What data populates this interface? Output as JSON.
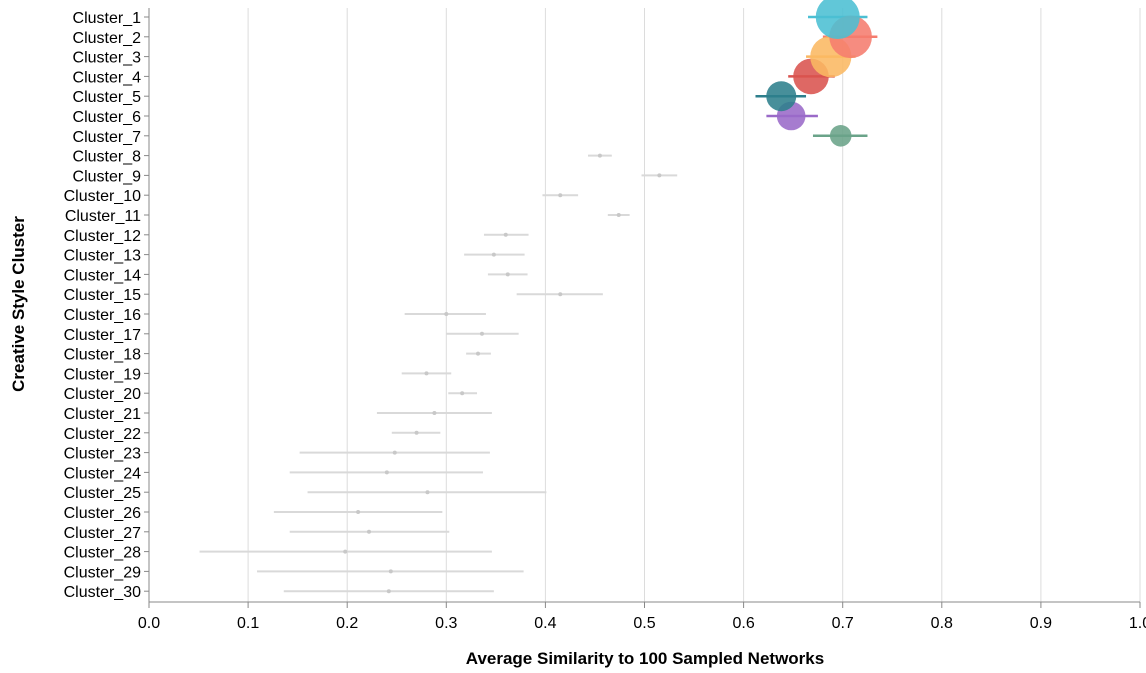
{
  "chart_data": {
    "type": "scatter",
    "title": "",
    "xlabel": "Average Similarity to 100 Sampled Networks",
    "ylabel": "Creative Style Cluster",
    "xlim": [
      0.0,
      1.0
    ],
    "xticks": [
      "0.0",
      "0.1",
      "0.2",
      "0.3",
      "0.4",
      "0.5",
      "0.6",
      "0.7",
      "0.8",
      "0.9",
      "1.0"
    ],
    "grid": "vertical",
    "legend": "none",
    "categories": [
      "Cluster_1",
      "Cluster_2",
      "Cluster_3",
      "Cluster_4",
      "Cluster_5",
      "Cluster_6",
      "Cluster_7",
      "Cluster_8",
      "Cluster_9",
      "Cluster_10",
      "Cluster_11",
      "Cluster_12",
      "Cluster_13",
      "Cluster_14",
      "Cluster_15",
      "Cluster_16",
      "Cluster_17",
      "Cluster_18",
      "Cluster_19",
      "Cluster_20",
      "Cluster_21",
      "Cluster_22",
      "Cluster_23",
      "Cluster_24",
      "Cluster_25",
      "Cluster_26",
      "Cluster_27",
      "Cluster_28",
      "Cluster_29",
      "Cluster_30"
    ],
    "points": [
      {
        "cluster": "Cluster_1",
        "mean": 0.695,
        "low": 0.665,
        "high": 0.725,
        "size": 1.0,
        "color": "#4bbfd3"
      },
      {
        "cluster": "Cluster_2",
        "mean": 0.708,
        "low": 0.68,
        "high": 0.735,
        "size": 0.95,
        "color": "#f57c6e"
      },
      {
        "cluster": "Cluster_3",
        "mean": 0.688,
        "low": 0.663,
        "high": 0.713,
        "size": 0.9,
        "color": "#fbb862"
      },
      {
        "cluster": "Cluster_4",
        "mean": 0.668,
        "low": 0.645,
        "high": 0.692,
        "size": 0.7,
        "color": "#d9534f"
      },
      {
        "cluster": "Cluster_5",
        "mean": 0.638,
        "low": 0.612,
        "high": 0.663,
        "size": 0.5,
        "color": "#2e7f8c"
      },
      {
        "cluster": "Cluster_6",
        "mean": 0.648,
        "low": 0.623,
        "high": 0.675,
        "size": 0.45,
        "color": "#9a6ac8"
      },
      {
        "cluster": "Cluster_7",
        "mean": 0.698,
        "low": 0.67,
        "high": 0.725,
        "size": 0.2,
        "color": "#6aa389"
      },
      {
        "cluster": "Cluster_8",
        "mean": 0.455,
        "low": 0.443,
        "high": 0.467,
        "size": 0.0,
        "color": "#bdbdbd"
      },
      {
        "cluster": "Cluster_9",
        "mean": 0.515,
        "low": 0.497,
        "high": 0.533,
        "size": 0.0,
        "color": "#bdbdbd"
      },
      {
        "cluster": "Cluster_10",
        "mean": 0.415,
        "low": 0.397,
        "high": 0.433,
        "size": 0.0,
        "color": "#bdbdbd"
      },
      {
        "cluster": "Cluster_11",
        "mean": 0.474,
        "low": 0.463,
        "high": 0.485,
        "size": 0.0,
        "color": "#bdbdbd"
      },
      {
        "cluster": "Cluster_12",
        "mean": 0.36,
        "low": 0.338,
        "high": 0.383,
        "size": 0.0,
        "color": "#bdbdbd"
      },
      {
        "cluster": "Cluster_13",
        "mean": 0.348,
        "low": 0.318,
        "high": 0.379,
        "size": 0.0,
        "color": "#bdbdbd"
      },
      {
        "cluster": "Cluster_14",
        "mean": 0.362,
        "low": 0.342,
        "high": 0.382,
        "size": 0.0,
        "color": "#bdbdbd"
      },
      {
        "cluster": "Cluster_15",
        "mean": 0.415,
        "low": 0.371,
        "high": 0.458,
        "size": 0.0,
        "color": "#bdbdbd"
      },
      {
        "cluster": "Cluster_16",
        "mean": 0.3,
        "low": 0.258,
        "high": 0.34,
        "size": 0.0,
        "color": "#bdbdbd"
      },
      {
        "cluster": "Cluster_17",
        "mean": 0.336,
        "low": 0.3,
        "high": 0.373,
        "size": 0.0,
        "color": "#bdbdbd"
      },
      {
        "cluster": "Cluster_18",
        "mean": 0.332,
        "low": 0.32,
        "high": 0.345,
        "size": 0.0,
        "color": "#bdbdbd"
      },
      {
        "cluster": "Cluster_19",
        "mean": 0.28,
        "low": 0.255,
        "high": 0.305,
        "size": 0.0,
        "color": "#bdbdbd"
      },
      {
        "cluster": "Cluster_20",
        "mean": 0.316,
        "low": 0.302,
        "high": 0.331,
        "size": 0.0,
        "color": "#bdbdbd"
      },
      {
        "cluster": "Cluster_21",
        "mean": 0.288,
        "low": 0.23,
        "high": 0.346,
        "size": 0.0,
        "color": "#bdbdbd"
      },
      {
        "cluster": "Cluster_22",
        "mean": 0.27,
        "low": 0.245,
        "high": 0.294,
        "size": 0.0,
        "color": "#bdbdbd"
      },
      {
        "cluster": "Cluster_23",
        "mean": 0.248,
        "low": 0.152,
        "high": 0.344,
        "size": 0.0,
        "color": "#bdbdbd"
      },
      {
        "cluster": "Cluster_24",
        "mean": 0.24,
        "low": 0.142,
        "high": 0.337,
        "size": 0.0,
        "color": "#bdbdbd"
      },
      {
        "cluster": "Cluster_25",
        "mean": 0.281,
        "low": 0.16,
        "high": 0.401,
        "size": 0.0,
        "color": "#bdbdbd"
      },
      {
        "cluster": "Cluster_26",
        "mean": 0.211,
        "low": 0.126,
        "high": 0.296,
        "size": 0.0,
        "color": "#bdbdbd"
      },
      {
        "cluster": "Cluster_27",
        "mean": 0.222,
        "low": 0.142,
        "high": 0.303,
        "size": 0.0,
        "color": "#bdbdbd"
      },
      {
        "cluster": "Cluster_28",
        "mean": 0.198,
        "low": 0.051,
        "high": 0.346,
        "size": 0.0,
        "color": "#bdbdbd"
      },
      {
        "cluster": "Cluster_29",
        "mean": 0.244,
        "low": 0.109,
        "high": 0.378,
        "size": 0.0,
        "color": "#bdbdbd"
      },
      {
        "cluster": "Cluster_30",
        "mean": 0.242,
        "low": 0.136,
        "high": 0.348,
        "size": 0.0,
        "color": "#bdbdbd"
      }
    ]
  }
}
